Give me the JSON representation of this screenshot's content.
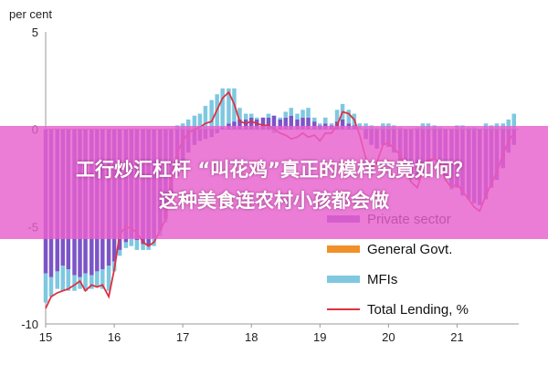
{
  "chart_data": {
    "type": "bar",
    "ylabel": "per cent",
    "ylim": [
      -10,
      5
    ],
    "yticks": [
      5,
      0,
      -5,
      -10
    ],
    "xticks": [
      "15",
      "16",
      "17",
      "18",
      "19",
      "20",
      "21"
    ],
    "series": [
      {
        "name": "Private sector",
        "type": "bar"
      },
      {
        "name": "General Govt.",
        "type": "bar"
      },
      {
        "name": "MFIs",
        "type": "bar"
      },
      {
        "name": "Total Lending, %",
        "type": "line"
      }
    ],
    "colors": {
      "private": "#7b55c7",
      "government": "#f0902a",
      "mfi": "#7fc8e0",
      "total": "#e03040"
    },
    "data": [
      {
        "x": 15.0,
        "private": -7.4,
        "mfi": -1.5,
        "total": -9.2
      },
      {
        "x": 15.08,
        "private": -7.6,
        "mfi": -1.0,
        "total": -8.6
      },
      {
        "x": 15.17,
        "private": -7.3,
        "mfi": -0.9,
        "total": -8.4
      },
      {
        "x": 15.25,
        "private": -7.0,
        "mfi": -1.3,
        "total": -8.3
      },
      {
        "x": 15.33,
        "private": -7.2,
        "mfi": -1.1,
        "total": -8.2
      },
      {
        "x": 15.42,
        "private": -7.5,
        "mfi": -0.8,
        "total": -8.0
      },
      {
        "x": 15.5,
        "private": -7.6,
        "mfi": -0.6,
        "total": -7.8
      },
      {
        "x": 15.58,
        "private": -7.4,
        "mfi": -0.9,
        "total": -8.3
      },
      {
        "x": 15.67,
        "private": -7.5,
        "mfi": -0.7,
        "total": -8.0
      },
      {
        "x": 15.75,
        "private": -7.3,
        "mfi": -0.8,
        "total": -8.1
      },
      {
        "x": 15.83,
        "private": -7.2,
        "mfi": -1.0,
        "total": -8.0
      },
      {
        "x": 15.92,
        "private": -7.0,
        "mfi": -1.3,
        "total": -8.6
      },
      {
        "x": 16.0,
        "private": -6.8,
        "mfi": -0.5,
        "total": -7.2
      },
      {
        "x": 16.08,
        "private": -6.2,
        "mfi": -0.3,
        "total": -5.4
      },
      {
        "x": 16.17,
        "private": -5.8,
        "mfi": -0.3,
        "total": -5.0
      },
      {
        "x": 16.25,
        "private": -5.6,
        "mfi": -0.4,
        "total": -5.1
      },
      {
        "x": 16.33,
        "private": -5.7,
        "mfi": -0.5,
        "total": -5.3
      },
      {
        "x": 16.42,
        "private": -5.9,
        "mfi": -0.3,
        "total": -5.8
      },
      {
        "x": 16.5,
        "private": -6.0,
        "mfi": -0.2,
        "total": -6.0
      },
      {
        "x": 16.58,
        "private": -5.6,
        "mfi": -0.4,
        "total": -5.8
      },
      {
        "x": 16.67,
        "private": -5.2,
        "mfi": -0.3,
        "total": -5.2
      },
      {
        "x": 16.75,
        "private": -4.6,
        "mfi": -0.2,
        "total": -4.6
      },
      {
        "x": 16.83,
        "private": -3.4,
        "mfi": -0.1,
        "total": -2.5
      },
      {
        "x": 16.92,
        "private": -2.4,
        "mfi": 0.2,
        "total": -1.2
      },
      {
        "x": 17.0,
        "private": -1.8,
        "mfi": 0.3,
        "total": -0.6
      },
      {
        "x": 17.08,
        "private": -1.2,
        "mfi": 0.5,
        "total": -0.2
      },
      {
        "x": 17.17,
        "private": -0.8,
        "mfi": 0.7,
        "total": 0.0
      },
      {
        "x": 17.25,
        "private": -0.6,
        "mfi": 0.8,
        "total": 0.1
      },
      {
        "x": 17.33,
        "private": -0.5,
        "mfi": 1.2,
        "total": 0.3
      },
      {
        "x": 17.42,
        "private": -0.4,
        "mfi": 1.5,
        "total": 0.4
      },
      {
        "x": 17.5,
        "private": -0.2,
        "mfi": 1.8,
        "total": 1.0
      },
      {
        "x": 17.58,
        "private": 0.1,
        "mfi": 2.0,
        "total": 1.6
      },
      {
        "x": 17.67,
        "private": 0.3,
        "mfi": 1.8,
        "total": 1.9
      },
      {
        "x": 17.75,
        "private": 0.4,
        "mfi": 1.7,
        "total": 1.3
      },
      {
        "x": 17.83,
        "private": 0.5,
        "mfi": 0.6,
        "total": 0.4
      },
      {
        "x": 17.92,
        "private": 0.5,
        "mfi": 0.3,
        "total": 0.3
      },
      {
        "x": 18.0,
        "private": 0.6,
        "mfi": 0.2,
        "total": 0.4
      },
      {
        "x": 18.08,
        "private": 0.5,
        "mfi": 0.1,
        "total": 0.3
      },
      {
        "x": 18.17,
        "private": 0.6,
        "mfi": 0.0,
        "total": 0.2
      },
      {
        "x": 18.25,
        "private": 0.6,
        "mfi": 0.2,
        "total": 0.2
      },
      {
        "x": 18.33,
        "private": 0.7,
        "mfi": -0.2,
        "total": 0.0
      },
      {
        "x": 18.42,
        "private": 0.5,
        "mfi": 0.1,
        "total": -0.2
      },
      {
        "x": 18.5,
        "private": 0.6,
        "mfi": 0.3,
        "total": -0.3
      },
      {
        "x": 18.58,
        "private": 0.7,
        "mfi": 0.4,
        "total": -0.5
      },
      {
        "x": 18.67,
        "private": 0.5,
        "mfi": 0.3,
        "total": -0.4
      },
      {
        "x": 18.75,
        "private": 0.6,
        "mfi": 0.4,
        "total": -0.2
      },
      {
        "x": 18.83,
        "private": 0.6,
        "mfi": 0.5,
        "total": -0.4
      },
      {
        "x": 18.92,
        "private": 0.4,
        "mfi": 0.2,
        "total": -0.3
      },
      {
        "x": 19.0,
        "private": 0.2,
        "mfi": 0.1,
        "total": -0.6
      },
      {
        "x": 19.08,
        "private": 0.3,
        "mfi": 0.3,
        "total": -0.2
      },
      {
        "x": 19.17,
        "private": 0.2,
        "mfi": 0.1,
        "total": -0.2
      },
      {
        "x": 19.25,
        "private": 0.4,
        "mfi": 0.6,
        "total": 0.2
      },
      {
        "x": 19.33,
        "private": 0.5,
        "mfi": 0.8,
        "total": 0.9
      },
      {
        "x": 19.42,
        "private": 0.3,
        "mfi": 0.7,
        "total": 0.8
      },
      {
        "x": 19.5,
        "private": 0.2,
        "mfi": 0.6,
        "total": 0.5
      },
      {
        "x": 19.58,
        "private": 0.0,
        "mfi": 0.3,
        "total": -0.3
      },
      {
        "x": 19.67,
        "private": -0.5,
        "mfi": 0.3,
        "total": -1.5
      },
      {
        "x": 19.75,
        "private": -0.8,
        "mfi": 0.2,
        "total": -2.0
      },
      {
        "x": 19.83,
        "private": -1.0,
        "mfi": 0.1,
        "total": -1.7
      },
      {
        "x": 19.92,
        "private": -0.8,
        "mfi": 0.3,
        "total": -0.8
      },
      {
        "x": 20.0,
        "private": -0.9,
        "mfi": 0.3,
        "total": -0.7
      },
      {
        "x": 20.08,
        "private": -1.2,
        "mfi": 0.2,
        "total": -1.0
      },
      {
        "x": 20.17,
        "private": -1.6,
        "mfi": 0.1,
        "total": -1.3
      },
      {
        "x": 20.25,
        "private": -2.0,
        "mfi": 0.0,
        "total": -2.0
      },
      {
        "x": 20.33,
        "private": -2.4,
        "mfi": -0.2,
        "total": -2.7
      },
      {
        "x": 20.42,
        "private": -2.6,
        "mfi": 0.1,
        "total": -3.0
      },
      {
        "x": 20.5,
        "private": -2.2,
        "mfi": 0.3,
        "total": -2.1
      },
      {
        "x": 20.58,
        "private": -1.8,
        "mfi": 0.3,
        "total": -1.6
      },
      {
        "x": 20.67,
        "private": -1.6,
        "mfi": 0.2,
        "total": -1.5
      },
      {
        "x": 20.75,
        "private": -1.9,
        "mfi": 0.1,
        "total": -1.8
      },
      {
        "x": 20.83,
        "private": -2.4,
        "mfi": -0.1,
        "total": -2.6
      },
      {
        "x": 20.92,
        "private": -2.9,
        "mfi": -0.2,
        "total": -3.0
      },
      {
        "x": 21.0,
        "private": -3.0,
        "mfi": 0.2,
        "total": -2.8
      },
      {
        "x": 21.08,
        "private": -3.4,
        "mfi": 0.2,
        "total": -3.2
      },
      {
        "x": 21.17,
        "private": -3.6,
        "mfi": 0.1,
        "total": -3.6
      },
      {
        "x": 21.25,
        "private": -3.8,
        "mfi": 0.1,
        "total": -4.0
      },
      {
        "x": 21.33,
        "private": -3.9,
        "mfi": 0.0,
        "total": -4.2
      },
      {
        "x": 21.42,
        "private": -3.6,
        "mfi": 0.3,
        "total": -3.4
      },
      {
        "x": 21.5,
        "private": -3.0,
        "mfi": 0.2,
        "total": -2.8
      },
      {
        "x": 21.58,
        "private": -2.6,
        "mfi": 0.3,
        "total": -2.2
      },
      {
        "x": 21.67,
        "private": -2.0,
        "mfi": 0.3,
        "total": -1.3
      },
      {
        "x": 21.75,
        "private": -1.2,
        "mfi": 0.5,
        "total": -0.6
      },
      {
        "x": 21.83,
        "private": -0.8,
        "mfi": 0.8,
        "total": -0.2
      }
    ],
    "grid": false,
    "legend_position": "bottom-right"
  },
  "overlay": {
    "line1": "工行炒汇杠杆 “叫花鸡”真正的模样究竟如何？",
    "line2": "这种美食连农村小孩都会做"
  }
}
